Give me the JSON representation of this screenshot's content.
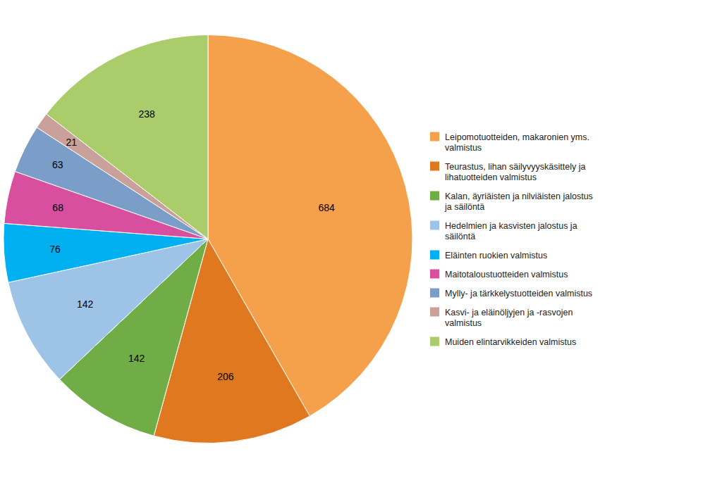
{
  "chart_data": {
    "type": "pie",
    "categories": [
      "Leipomotuotteiden, makaronien yms.\nvalmistus",
      "Teurastus, lihan säilyvyyskäsittely ja\nlihatuotteiden valmistus",
      "Kalan, äyriäisten ja nilviäisten jalostus\nja säilöntä",
      "Hedelmien ja kasvisten jalostus ja\nsäilöntä",
      "Eläinten ruokien valmistus",
      "Maitotaloustuotteiden valmistus",
      "Mylly- ja tärkkelystuotteiden valmistus",
      "Kasvi- ja eläinöljyjen ja -rasvojen\nvalmistus",
      "Muiden elintarvikkeiden valmistus"
    ],
    "values": [
      684,
      206,
      142,
      142,
      76,
      68,
      63,
      21,
      238
    ],
    "colors": [
      "#F5A04B",
      "#E07820",
      "#70AD47",
      "#9DC3E6",
      "#00B0F0",
      "#D94FA0",
      "#7B9EC9",
      "#C9A09A",
      "#AACC6A"
    ],
    "data_labels": true,
    "legend": "right"
  }
}
